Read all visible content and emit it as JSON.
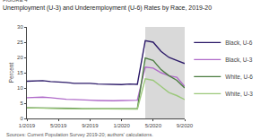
{
  "chart_data": {
    "type": "line",
    "title": "Unemployment (U-3) and Underemployment (U-6) Rates by Race, 2019-20",
    "figure_label": "FIGURE 4",
    "source": "Sources: Current Population Survey 2019-20; authors' calculations.",
    "y_label": "Percent",
    "categories": [
      "1/2019",
      null,
      null,
      null,
      "5/2019",
      null,
      null,
      null,
      "9/2019",
      null,
      null,
      null,
      "1/2020",
      null,
      null,
      null,
      "5/2020",
      null,
      null,
      null,
      "9/2020"
    ],
    "series": [
      {
        "name": "Black, U-6",
        "color": "#2d1b69",
        "values": [
          12.2,
          12.3,
          12.4,
          12.1,
          12.0,
          11.8,
          11.5,
          11.6,
          11.5,
          11.3,
          11.2,
          11.0,
          11.1,
          11.3,
          11.2,
          25.5,
          25.0,
          22.0,
          20.0,
          19.0,
          18.0
        ]
      },
      {
        "name": "Black, U-3",
        "color": "#b06bc9",
        "values": [
          6.8,
          7.0,
          7.0,
          6.8,
          6.5,
          6.3,
          6.2,
          6.2,
          6.0,
          5.9,
          5.8,
          5.8,
          5.9,
          6.0,
          6.0,
          16.8,
          16.5,
          15.0,
          14.0,
          13.5,
          10.5
        ]
      },
      {
        "name": "White, U-6",
        "color": "#4a7c3f",
        "values": [
          3.5,
          3.5,
          3.5,
          3.5,
          3.4,
          3.3,
          3.3,
          3.2,
          3.2,
          3.1,
          3.2,
          3.1,
          3.2,
          3.3,
          3.2,
          19.8,
          19.0,
          16.0,
          14.0,
          12.5,
          10.0
        ]
      },
      {
        "name": "White, U-3",
        "color": "#9bc87a",
        "values": [
          3.5,
          3.4,
          3.4,
          3.4,
          3.3,
          3.2,
          3.2,
          3.2,
          3.1,
          3.1,
          3.1,
          3.0,
          3.1,
          3.2,
          3.1,
          13.0,
          12.5,
          10.5,
          8.5,
          7.5,
          6.2
        ]
      }
    ],
    "ylim": [
      0,
      30
    ],
    "yticks": [
      0,
      5,
      10,
      15,
      20,
      25,
      30
    ],
    "grid": false,
    "legend": "right",
    "shaded": {
      "start": 15,
      "end": 21,
      "color": "#d9d9d9"
    }
  }
}
